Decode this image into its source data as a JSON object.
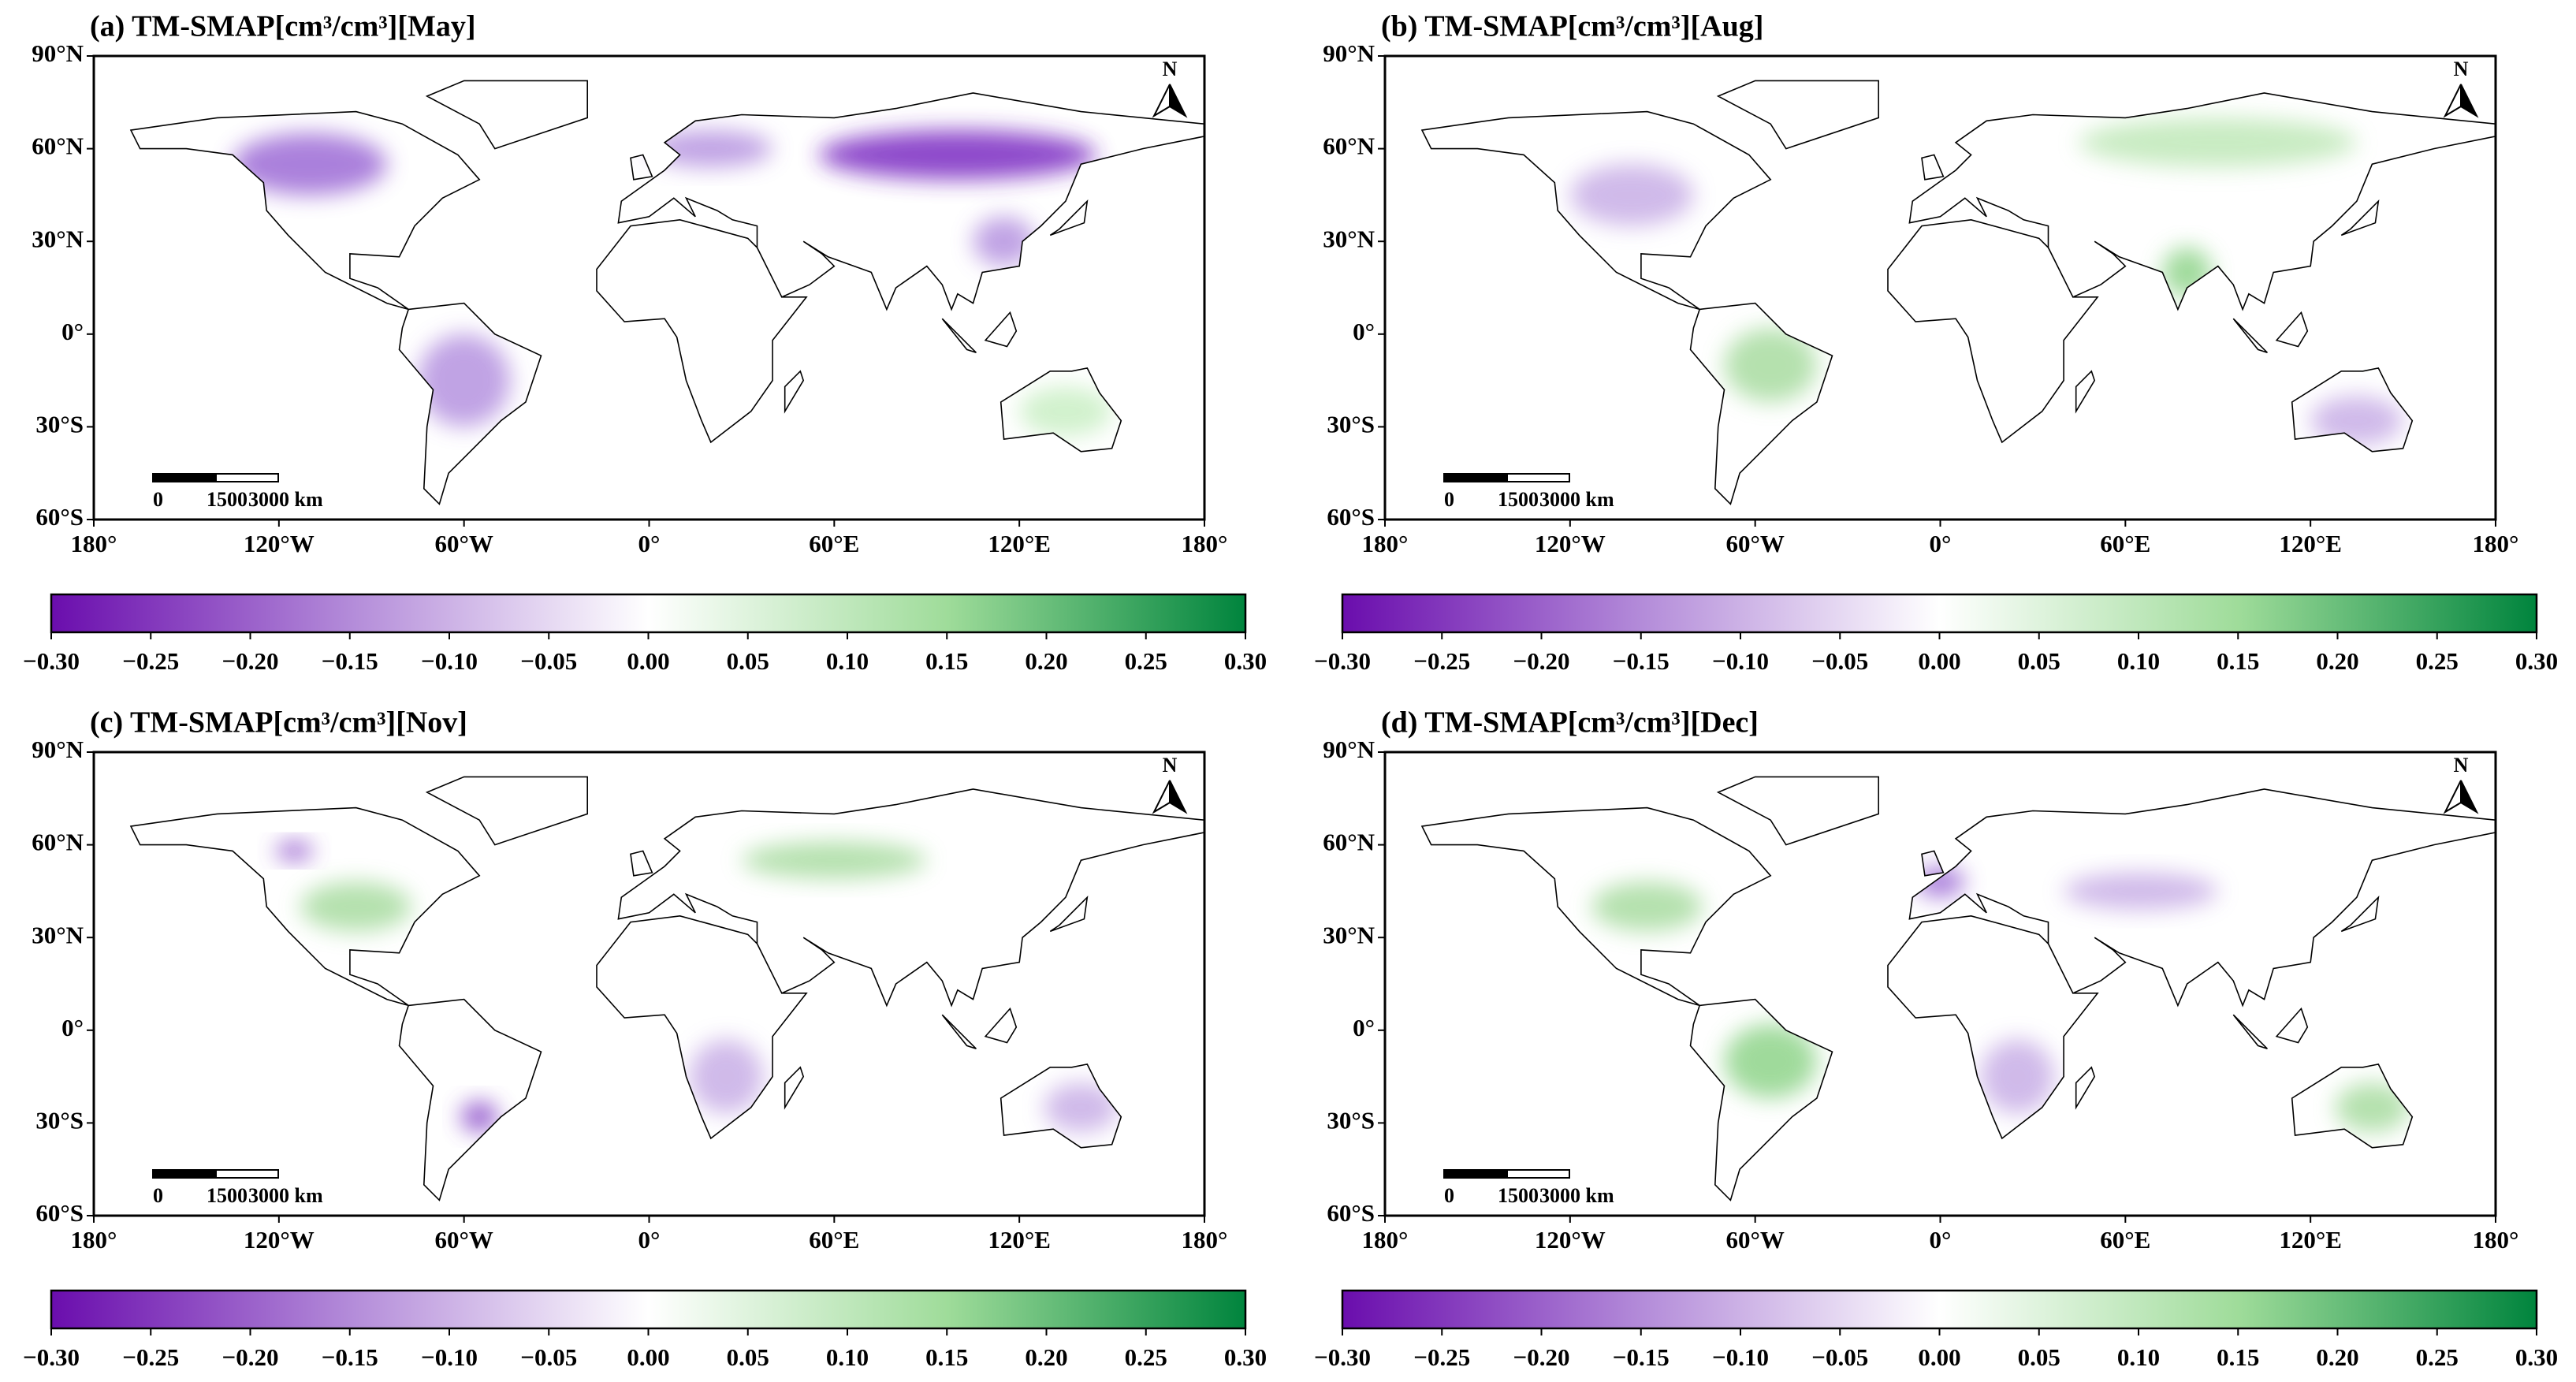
{
  "panels": [
    {
      "title": "(a) TM-SMAP[cm³/cm³][May]"
    },
    {
      "title": "(b) TM-SMAP[cm³/cm³][Aug]"
    },
    {
      "title": "(c) TM-SMAP[cm³/cm³][Nov]"
    },
    {
      "title": "(d) TM-SMAP[cm³/cm³][Dec]"
    }
  ],
  "map": {
    "lon_range": [
      -180,
      180
    ],
    "lat_range": [
      -60,
      90
    ],
    "lat_ticks": [
      {
        "value": 90,
        "label": "90°N"
      },
      {
        "value": 60,
        "label": "60°N"
      },
      {
        "value": 30,
        "label": "30°N"
      },
      {
        "value": 0,
        "label": "0°"
      },
      {
        "value": -30,
        "label": "30°S"
      },
      {
        "value": -60,
        "label": "60°S"
      }
    ],
    "lon_ticks": [
      {
        "value": -180,
        "label": "180°"
      },
      {
        "value": -120,
        "label": "120°W"
      },
      {
        "value": -60,
        "label": "60°W"
      },
      {
        "value": 0,
        "label": "0°"
      },
      {
        "value": 60,
        "label": "60°E"
      },
      {
        "value": 120,
        "label": "120°E"
      },
      {
        "value": 180,
        "label": "180°"
      }
    ],
    "north_label": "N",
    "scale_bar_labels": [
      "0",
      "1500",
      "3000 km"
    ]
  },
  "colorbar": {
    "range": [
      -0.3,
      0.3
    ],
    "colors": [
      "#6a0dad",
      "#b38bd9",
      "#ffffff",
      "#9fdc9a",
      "#00843d"
    ],
    "ticks": [
      {
        "value": -0.3,
        "label": "−0.30"
      },
      {
        "value": -0.25,
        "label": "−0.25"
      },
      {
        "value": -0.2,
        "label": "−0.20"
      },
      {
        "value": -0.15,
        "label": "−0.15"
      },
      {
        "value": -0.1,
        "label": "−0.10"
      },
      {
        "value": -0.05,
        "label": "−0.05"
      },
      {
        "value": 0,
        "label": "0.00"
      },
      {
        "value": 0.05,
        "label": "0.05"
      },
      {
        "value": 0.1,
        "label": "0.10"
      },
      {
        "value": 0.15,
        "label": "0.15"
      },
      {
        "value": 0.2,
        "label": "0.20"
      },
      {
        "value": 0.25,
        "label": "0.25"
      },
      {
        "value": 0.3,
        "label": "0.30"
      }
    ]
  }
}
